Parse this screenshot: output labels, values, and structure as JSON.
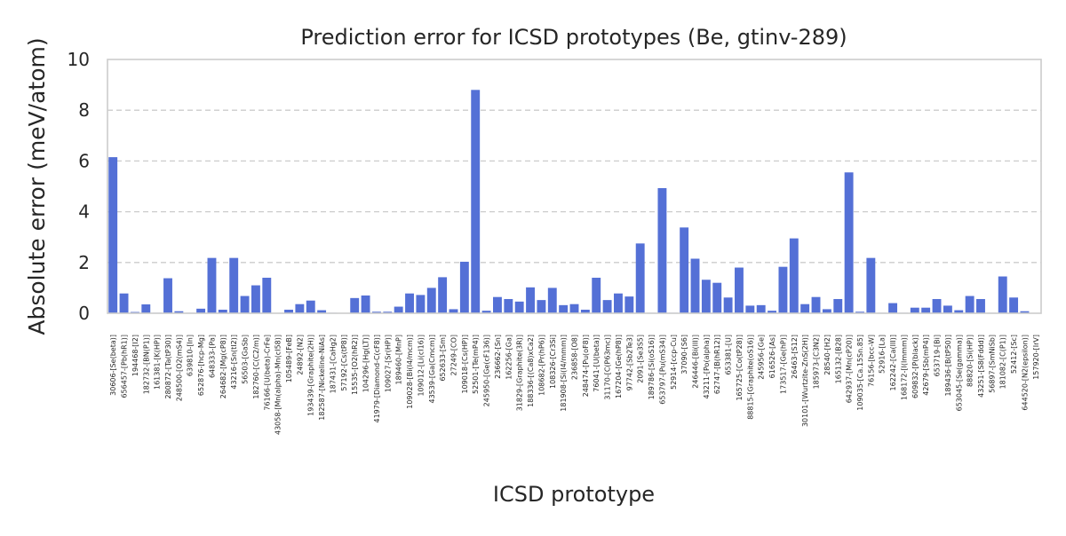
{
  "chart_data": {
    "type": "bar",
    "title": "Prediction error for ICSD prototypes (Be, gtinv-289)",
    "xlabel": "ICSD prototype",
    "ylabel": "Absolute error (meV/atom)",
    "ylim": [
      0,
      10
    ],
    "yticks": [
      0,
      2,
      4,
      6,
      8,
      10
    ],
    "grid": "y",
    "bar_color": "#5470d6",
    "categories": [
      "30606-[Se(beta)]",
      "656457-[Pb(hR1)]",
      "194468-[I2]",
      "182732-[BN(P1)]",
      "161381-[K(HP)]",
      "280872-[Ta(tP30)]",
      "248500-[O2(mS4)]",
      "639810-[In]",
      "652876-[hcp-Mg]",
      "648333-[Pa]",
      "264682-[Mg(cP8)]",
      "43216-[Sn(tI2)]",
      "56503-[GaSb]",
      "182760-[C(C2/m)]",
      "76166-[U(beta)-CrFe]",
      "43058-[Mn(alpha)-Mn(cI58)]",
      "105489-[FeB]",
      "24892-[N2]",
      "193439-[Graphite(2H)]",
      "182587-[Nickeline-NiAs]",
      "187431-[CaHg2]",
      "57192-[Cs(tP8)]",
      "15535-[O2(hR2)]",
      "104296-[Hg(LT)]",
      "41979-[Diamond-C(cF8)]",
      "109027-[Sr(HP)]",
      "189460-[MnP]",
      "109028-[Bi(I4/mcm)]",
      "109012-[Li(cI16)]",
      "43539-[Ga(Cmcm)]",
      "652633-[Sm]",
      "27249-[CO]",
      "109018-[Cs(HP)]",
      "52501-[Te(mP4)]",
      "245950-[Ge(cF136)]",
      "236662-[Sn]",
      "162256-[Ga]",
      "31829-[Graphite(3R)]",
      "188336-[(Ca8)xCa2]",
      "108682-[Pr(hP6)]",
      "108326-[Cr3Si]",
      "181908-[Si(I4/mmm)]",
      "236858-[O8]",
      "248474-[Pu(oF8)]",
      "76041-[U(beta)]",
      "31170-[C(P63mc)]",
      "167204-[Ge(hP8)]",
      "97742-[Sb2Te3]",
      "2091-[Se3S5]",
      "189786-[Si(oS16)]",
      "653797-[Pu(mS34)]",
      "52914-[ccp-Cu]",
      "37090-[S6]",
      "246446-[Bi(III)]",
      "43211-[Po(alpha)]",
      "62747-[B(hR12)]",
      "653381-[U]",
      "165725-[Co(tP28)]",
      "88815-[Graphite(oS16)]",
      "245956-[Ge]",
      "616526-[As]",
      "173517-[Ge(hP)]",
      "26463-[S12]",
      "30101-[Wurtzite-ZnS(2H)]",
      "185973-[C3N2]",
      "28540-[H2]",
      "165132-[B28]",
      "642937-[Mn(cP20)]",
      "109035-[Ca.15Sn.85]",
      "76156-[bcc-W]",
      "52916-[La]",
      "162242-[Ca(III)]",
      "168172-[I(Immm)]",
      "609832-[P(black)]",
      "42679-[Sb(mP4)]",
      "653719-[Bi]",
      "189436-[B(tP50)]",
      "653045-[Se(gamma)]",
      "88820-[Si(HP)]",
      "43251-[S8(Fddd)]",
      "56897-[SmNiSb]",
      "181082-[C(P1)]",
      "52412-[Sc]",
      "644520-[N2(epsilon)]",
      "157920-[IrV]"
    ],
    "values": [
      6.15,
      0.78,
      0.05,
      0.35,
      0.02,
      1.38,
      0.08,
      0.02,
      0.18,
      2.18,
      0.14,
      2.18,
      0.68,
      1.1,
      1.4,
      0.01,
      0.14,
      0.36,
      0.5,
      0.12,
      0.02,
      0.01,
      0.6,
      0.7,
      0.06,
      0.06,
      0.26,
      0.78,
      0.72,
      1.0,
      1.42,
      0.16,
      2.03,
      8.8,
      0.1,
      0.64,
      0.56,
      0.46,
      1.02,
      0.52,
      1.0,
      0.32,
      0.36,
      0.14,
      1.4,
      0.52,
      0.78,
      0.66,
      2.75,
      0.02,
      4.93,
      0.02,
      3.38,
      2.15,
      1.32,
      1.2,
      0.62,
      1.8,
      0.3,
      0.32,
      0.1,
      1.83,
      2.95,
      0.36,
      0.64,
      0.16,
      0.56,
      5.55,
      0.06,
      2.18,
      0.02,
      0.4,
      0.02,
      0.22,
      0.22,
      0.56,
      0.3,
      0.12,
      0.68,
      0.56,
      0.02,
      1.45,
      0.62,
      0.08,
      0.01
    ]
  }
}
